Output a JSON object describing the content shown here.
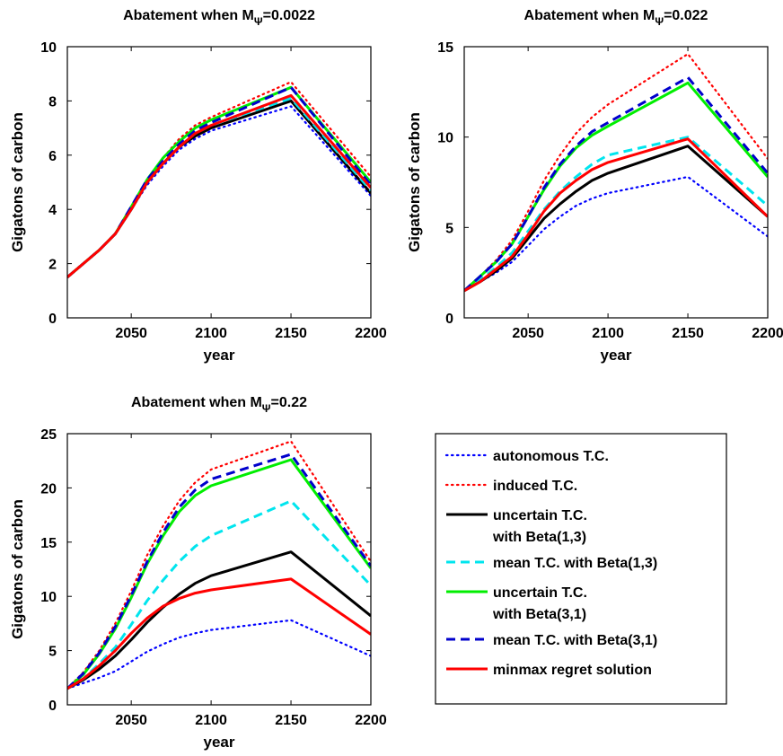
{
  "legend": {
    "items": [
      {
        "key": "auto",
        "lines": [
          "autonomous T.C."
        ],
        "color": "#0000ff",
        "dash": "dot"
      },
      {
        "key": "induced",
        "lines": [
          "induced T.C."
        ],
        "color": "#ff0000",
        "dash": "dot"
      },
      {
        "key": "unc13",
        "lines": [
          "uncertain T.C.",
          "with Beta(1,3)"
        ],
        "color": "#000000",
        "dash": "solid"
      },
      {
        "key": "mean13",
        "lines": [
          "mean T.C. with Beta(1,3)"
        ],
        "color": "#00e5ee",
        "dash": "dash"
      },
      {
        "key": "unc31",
        "lines": [
          "uncertain T.C.",
          "with Beta(3,1)"
        ],
        "color": "#00ee00",
        "dash": "solid"
      },
      {
        "key": "mean31",
        "lines": [
          "mean T.C. with Beta(3,1)"
        ],
        "color": "#0000cc",
        "dash": "dash"
      },
      {
        "key": "minmax",
        "lines": [
          "minmax regret solution"
        ],
        "color": "#ff0000",
        "dash": "solid"
      }
    ]
  },
  "chart_data": [
    {
      "type": "line",
      "title_prefix": "Abatement when M",
      "title_sub": "Ψ",
      "title_suffix": "=0.0022",
      "xlabel": "year",
      "ylabel": "Gigatons of carbon",
      "xlim": [
        2010,
        2200
      ],
      "ylim": [
        0,
        10
      ],
      "xticks": [
        2050,
        2100,
        2150,
        2200
      ],
      "yticks": [
        0,
        2,
        4,
        6,
        8,
        10
      ],
      "x": [
        2010,
        2020,
        2030,
        2040,
        2050,
        2060,
        2070,
        2080,
        2090,
        2100,
        2150,
        2200
      ],
      "series": [
        {
          "key": "auto",
          "values": [
            1.5,
            2.0,
            2.5,
            3.1,
            4.0,
            4.9,
            5.6,
            6.2,
            6.6,
            6.9,
            7.8,
            4.5
          ]
        },
        {
          "key": "induced",
          "values": [
            1.5,
            2.0,
            2.5,
            3.1,
            4.1,
            5.1,
            5.9,
            6.6,
            7.1,
            7.4,
            8.7,
            5.2
          ]
        },
        {
          "key": "unc13",
          "values": [
            1.5,
            2.0,
            2.5,
            3.1,
            4.0,
            5.0,
            5.7,
            6.3,
            6.7,
            7.0,
            8.0,
            4.6
          ]
        },
        {
          "key": "mean13",
          "values": [
            1.5,
            2.0,
            2.5,
            3.1,
            4.0,
            5.0,
            5.7,
            6.3,
            6.8,
            7.1,
            8.1,
            4.7
          ]
        },
        {
          "key": "unc31",
          "values": [
            1.5,
            2.0,
            2.5,
            3.1,
            4.1,
            5.1,
            5.9,
            6.5,
            7.0,
            7.3,
            8.5,
            5.0
          ]
        },
        {
          "key": "mean31",
          "values": [
            1.5,
            2.0,
            2.5,
            3.1,
            4.1,
            5.1,
            5.8,
            6.4,
            6.9,
            7.2,
            8.5,
            4.9
          ]
        },
        {
          "key": "minmax",
          "values": [
            1.5,
            2.0,
            2.5,
            3.1,
            4.0,
            5.0,
            5.7,
            6.3,
            6.8,
            7.1,
            8.2,
            4.8
          ]
        }
      ]
    },
    {
      "type": "line",
      "title_prefix": "Abatement when M",
      "title_sub": "Ψ",
      "title_suffix": "=0.022",
      "xlabel": "year",
      "ylabel": "Gigatons of carbon",
      "xlim": [
        2010,
        2200
      ],
      "ylim": [
        0,
        15
      ],
      "xticks": [
        2050,
        2100,
        2150,
        2200
      ],
      "yticks": [
        0,
        5,
        10,
        15
      ],
      "x": [
        2010,
        2020,
        2030,
        2040,
        2050,
        2060,
        2070,
        2080,
        2090,
        2100,
        2150,
        2200
      ],
      "series": [
        {
          "key": "auto",
          "values": [
            1.5,
            2.0,
            2.5,
            3.1,
            4.0,
            4.9,
            5.6,
            6.2,
            6.6,
            6.9,
            7.8,
            4.5
          ]
        },
        {
          "key": "induced",
          "values": [
            1.5,
            2.3,
            3.2,
            4.3,
            5.9,
            7.6,
            9.0,
            10.2,
            11.1,
            11.8,
            14.6,
            8.8
          ]
        },
        {
          "key": "unc13",
          "values": [
            1.5,
            2.0,
            2.6,
            3.3,
            4.4,
            5.5,
            6.3,
            7.0,
            7.6,
            8.0,
            9.5,
            5.6
          ]
        },
        {
          "key": "mean13",
          "values": [
            1.5,
            2.1,
            2.8,
            3.6,
            4.8,
            6.0,
            7.0,
            7.8,
            8.5,
            9.0,
            10.0,
            6.2
          ]
        },
        {
          "key": "unc31",
          "values": [
            1.5,
            2.3,
            3.1,
            4.1,
            5.6,
            7.1,
            8.4,
            9.4,
            10.1,
            10.6,
            13.0,
            7.8
          ]
        },
        {
          "key": "mean31",
          "values": [
            1.5,
            2.3,
            3.1,
            4.1,
            5.6,
            7.2,
            8.5,
            9.5,
            10.3,
            10.8,
            13.3,
            8.0
          ]
        },
        {
          "key": "minmax",
          "values": [
            1.5,
            2.0,
            2.7,
            3.4,
            4.6,
            5.9,
            6.9,
            7.6,
            8.2,
            8.6,
            9.9,
            5.6
          ]
        }
      ]
    },
    {
      "type": "line",
      "title_prefix": "Abatement when M",
      "title_sub": "Ψ",
      "title_suffix": "=0.22",
      "xlabel": "year",
      "ylabel": "Gigatons of carbon",
      "xlim": [
        2010,
        2200
      ],
      "ylim": [
        0,
        25
      ],
      "xticks": [
        2050,
        2100,
        2150,
        2200
      ],
      "yticks": [
        0,
        5,
        10,
        15,
        20,
        25
      ],
      "x": [
        2010,
        2020,
        2030,
        2040,
        2050,
        2060,
        2070,
        2080,
        2090,
        2100,
        2150,
        2200
      ],
      "series": [
        {
          "key": "auto",
          "values": [
            1.5,
            2.0,
            2.5,
            3.1,
            4.0,
            4.9,
            5.6,
            6.2,
            6.6,
            6.9,
            7.8,
            4.5
          ]
        },
        {
          "key": "induced",
          "values": [
            1.5,
            3.0,
            5.0,
            7.5,
            10.5,
            13.8,
            16.5,
            18.8,
            20.5,
            21.7,
            24.3,
            13.2
          ]
        },
        {
          "key": "unc13",
          "values": [
            1.5,
            2.3,
            3.3,
            4.5,
            6.0,
            7.6,
            9.0,
            10.2,
            11.2,
            11.9,
            14.1,
            8.2
          ]
        },
        {
          "key": "mean13",
          "values": [
            1.5,
            2.4,
            3.8,
            5.3,
            7.4,
            9.6,
            11.5,
            13.2,
            14.6,
            15.6,
            18.8,
            11.0
          ]
        },
        {
          "key": "unc31",
          "values": [
            1.5,
            2.8,
            4.7,
            7.0,
            9.9,
            13.0,
            15.6,
            17.8,
            19.3,
            20.2,
            22.6,
            12.6
          ]
        },
        {
          "key": "mean31",
          "values": [
            1.5,
            2.9,
            4.8,
            7.2,
            10.1,
            13.2,
            15.9,
            18.2,
            19.8,
            20.8,
            23.1,
            12.8
          ]
        },
        {
          "key": "minmax",
          "values": [
            1.5,
            2.4,
            3.6,
            5.0,
            6.6,
            8.0,
            9.1,
            9.8,
            10.3,
            10.6,
            11.6,
            6.5
          ]
        }
      ]
    }
  ]
}
